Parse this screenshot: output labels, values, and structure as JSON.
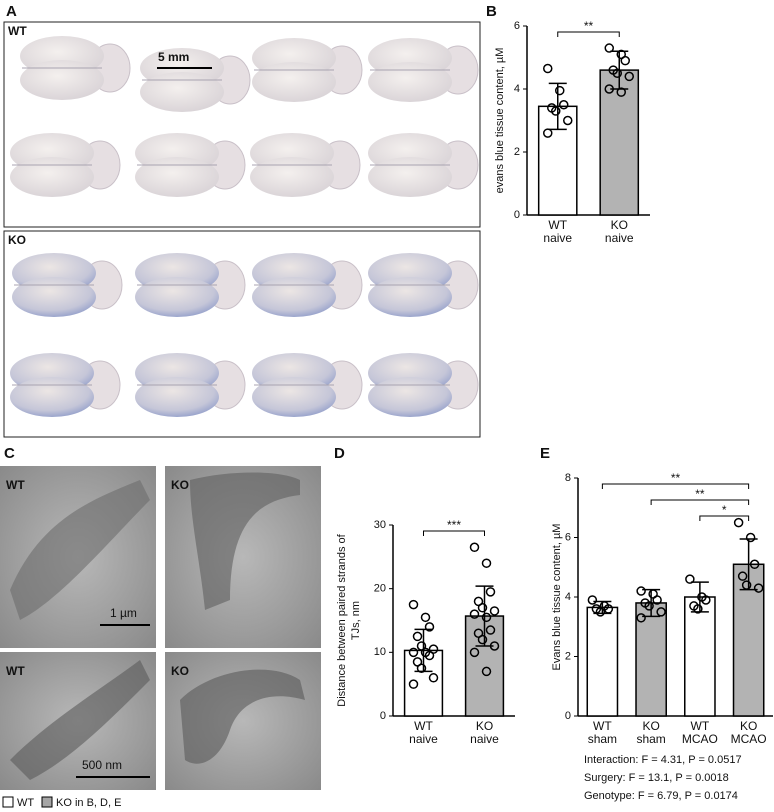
{
  "panels": {
    "A": "A",
    "B": "B",
    "C": "C",
    "D": "D",
    "E": "E"
  },
  "photos": {
    "wt": "WT",
    "ko": "KO",
    "scale": "5 mm"
  },
  "em": {
    "wt_top": "WT",
    "ko_top": "KO",
    "wt_bottom": "WT",
    "ko_bottom": "KO",
    "scale_top": "1 µm",
    "scale_bottom": "500 nm"
  },
  "legend": [
    {
      "label": "WT",
      "color": "#ffffff"
    },
    {
      "label": "KO in B, D, E",
      "color": "#a6a6a6"
    }
  ],
  "chart_data": [
    {
      "type": "bar",
      "ylabel": [
        "evans blue tissue content, µM"
      ],
      "categories": [
        [
          "WT",
          "naive"
        ],
        [
          "KO",
          "naive"
        ]
      ],
      "values": [
        3.45,
        4.6
      ],
      "errors": [
        0.73,
        0.6
      ],
      "colors": [
        "#ffffff",
        "#b3b3b3"
      ],
      "points": [
        [
          4.65,
          3.95,
          3.5,
          3.4,
          3.3,
          3.0,
          2.6
        ],
        [
          5.3,
          5.1,
          4.9,
          4.6,
          4.5,
          4.4,
          4.0,
          3.9
        ]
      ],
      "ylim": [
        0,
        6
      ],
      "yticks": [
        0,
        2,
        4,
        6
      ],
      "significance": [
        {
          "from": 0,
          "to": 1,
          "label": "**"
        }
      ]
    },
    {
      "type": "bar",
      "ylabel": [
        "Distance between paired strands of",
        "TJs, nm"
      ],
      "categories": [
        [
          "WT",
          "naive"
        ],
        [
          "KO",
          "naive"
        ]
      ],
      "values": [
        10.3,
        15.7
      ],
      "errors": [
        3.3,
        4.7
      ],
      "colors": [
        "#ffffff",
        "#b3b3b3"
      ],
      "points": [
        [
          17.5,
          15.5,
          14,
          12.5,
          11,
          10.5,
          10,
          10,
          9.5,
          8.5,
          7.5,
          6,
          5
        ],
        [
          26.5,
          24,
          19.5,
          18,
          17,
          16.5,
          16,
          15.5,
          13.5,
          13,
          12,
          11,
          10,
          7
        ]
      ],
      "ylim": [
        0,
        30
      ],
      "yticks": [
        0,
        10,
        20,
        30
      ],
      "significance": [
        {
          "from": 0,
          "to": 1,
          "label": "***"
        }
      ]
    },
    {
      "type": "bar",
      "ylabel": [
        "Evans blue tissue content, µM"
      ],
      "categories": [
        [
          "WT",
          "sham"
        ],
        [
          "KO",
          "sham"
        ],
        [
          "WT",
          "MCAO"
        ],
        [
          "KO",
          "MCAO"
        ]
      ],
      "values": [
        3.65,
        3.8,
        4.0,
        5.1
      ],
      "errors": [
        0.2,
        0.45,
        0.5,
        0.85
      ],
      "colors": [
        "#ffffff",
        "#b3b3b3",
        "#ffffff",
        "#b3b3b3"
      ],
      "points": [
        [
          3.9,
          3.7,
          3.6,
          3.6,
          3.5
        ],
        [
          4.2,
          4.1,
          3.9,
          3.8,
          3.7,
          3.5,
          3.3
        ],
        [
          4.6,
          4.0,
          3.9,
          3.7,
          3.6
        ],
        [
          6.5,
          6.0,
          5.1,
          4.7,
          4.4,
          4.3
        ]
      ],
      "ylim": [
        0,
        8
      ],
      "yticks": [
        0,
        2,
        4,
        6,
        8
      ],
      "significance": [
        {
          "from": 0,
          "to": 3,
          "label": "**"
        },
        {
          "from": 1,
          "to": 3,
          "label": "**"
        },
        {
          "from": 2,
          "to": 3,
          "label": "*"
        }
      ],
      "notes": [
        "Interaction: F = 4.31, P = 0.0517",
        "Surgery: F = 13.1, P = 0.0018",
        "Genotype: F = 6.79, P = 0.0174"
      ]
    }
  ]
}
